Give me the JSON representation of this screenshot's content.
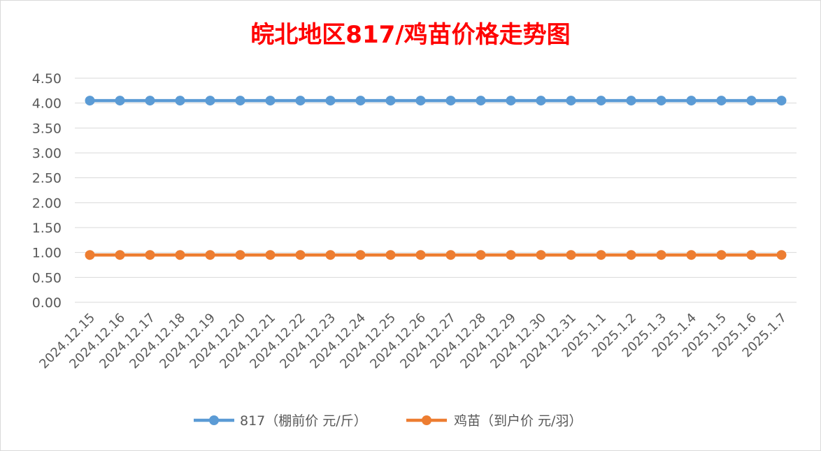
{
  "chart_data": {
    "type": "line",
    "title": "皖北地区817/鸡苗价格走势图",
    "xlabel": "",
    "ylabel": "",
    "ylim": [
      0,
      4.5
    ],
    "y_ticks": [
      "0.00",
      "0.50",
      "1.00",
      "1.50",
      "2.00",
      "2.50",
      "3.00",
      "3.50",
      "4.00",
      "4.50"
    ],
    "grid": true,
    "legend_position": "bottom",
    "categories": [
      "2024.12.15",
      "2024.12.16",
      "2024.12.17",
      "2024.12.18",
      "2024.12.19",
      "2024.12.20",
      "2024.12.21",
      "2024.12.22",
      "2024.12.23",
      "2024.12.24",
      "2024.12.25",
      "2024.12.26",
      "2024.12.27",
      "2024.12.28",
      "2024.12.29",
      "2024.12.30",
      "2024.12.31",
      "2025.1.1",
      "2025.1.2",
      "2025.1.3",
      "2025.1.4",
      "2025.1.5",
      "2025.1.6",
      "2025.1.7"
    ],
    "series": [
      {
        "name": "817（棚前价 元/斤）",
        "color": "#5b9bd5",
        "values": [
          4.05,
          4.05,
          4.05,
          4.05,
          4.05,
          4.05,
          4.05,
          4.05,
          4.05,
          4.05,
          4.05,
          4.05,
          4.05,
          4.05,
          4.05,
          4.05,
          4.05,
          4.05,
          4.05,
          4.05,
          4.05,
          4.05,
          4.05,
          4.05
        ]
      },
      {
        "name": "鸡苗（到户价 元/羽）",
        "color": "#ed7d31",
        "values": [
          0.95,
          0.95,
          0.95,
          0.95,
          0.95,
          0.95,
          0.95,
          0.95,
          0.95,
          0.95,
          0.95,
          0.95,
          0.95,
          0.95,
          0.95,
          0.95,
          0.95,
          0.95,
          0.95,
          0.95,
          0.95,
          0.95,
          0.95,
          0.95
        ]
      }
    ]
  }
}
